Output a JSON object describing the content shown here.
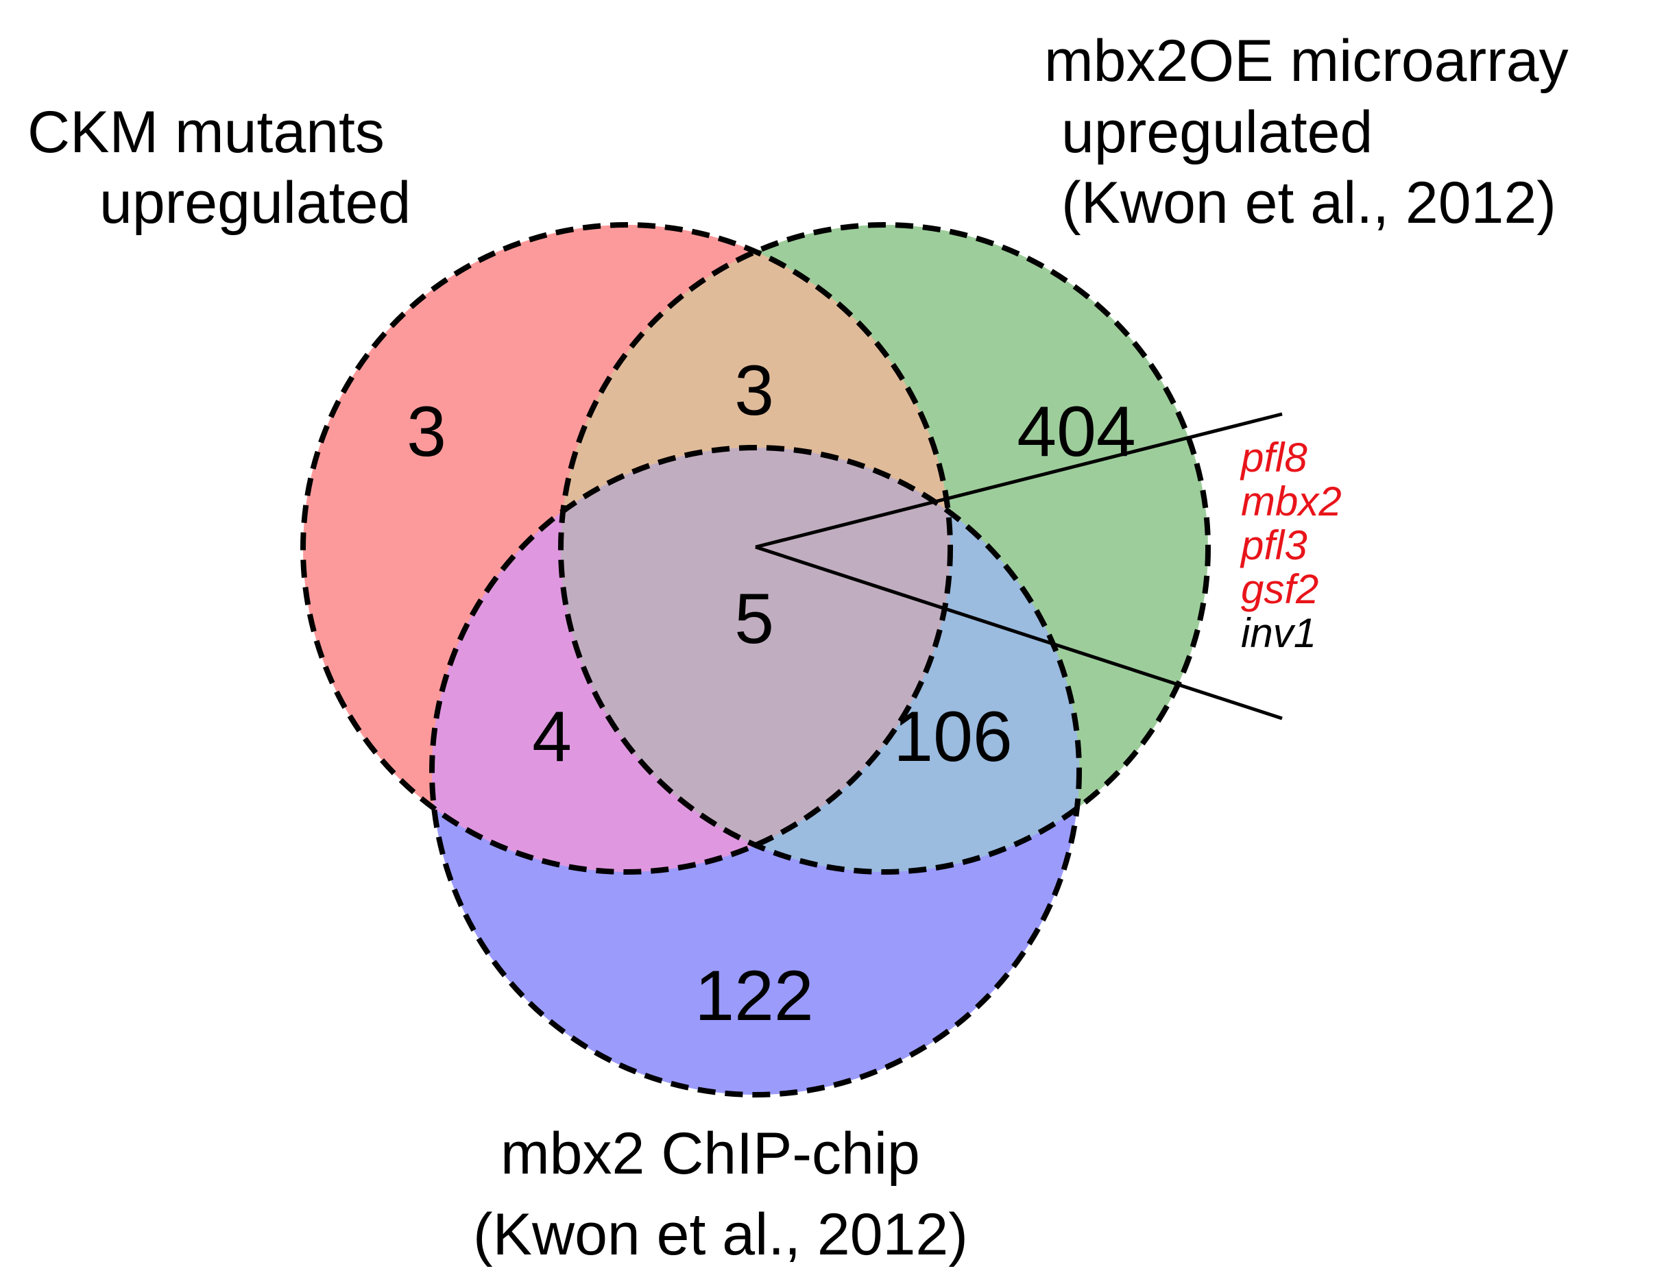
{
  "sets": {
    "ckm": {
      "label_lines": [
        "CKM mutants",
        "upregulated"
      ]
    },
    "mbx2oe": {
      "label_lines": [
        "mbx2OE microarray",
        "upregulated",
        "(Kwon et al., 2012)"
      ]
    },
    "chip": {
      "label_lines": [
        "mbx2 ChIP-chip",
        "(Kwon et al., 2012)"
      ]
    }
  },
  "regions": {
    "ckm_only": "3",
    "ckm_mbx2oe": "3",
    "mbx2oe_only": "404",
    "all_three": "5",
    "ckm_chip": "4",
    "mbx2oe_chip": "106",
    "chip_only": "122"
  },
  "genes": [
    {
      "name": "pfl8",
      "color": "#e8141a"
    },
    {
      "name": "mbx2",
      "color": "#e8141a"
    },
    {
      "name": "pfl3",
      "color": "#e8141a"
    },
    {
      "name": "gsf2",
      "color": "#e8141a"
    },
    {
      "name": "inv1",
      "color": "#000000"
    }
  ],
  "colors": {
    "ckm": "#fc9a9b",
    "mbx2oe": "#9dcd9b",
    "chip": "#9b9bfc",
    "ckm_mbx2oe": "#e0bb9a",
    "ckm_chip": "#df98df",
    "mbx2oe_chip": "#9bbbdf",
    "all_three": "#c1adc0"
  }
}
